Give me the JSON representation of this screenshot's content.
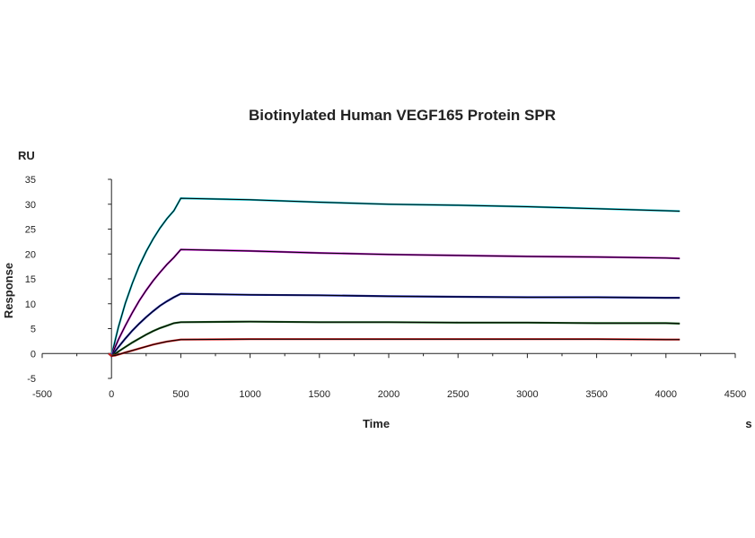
{
  "chart_data": {
    "type": "line",
    "title": "Biotinylated Human VEGF165 Protein SPR",
    "xlabel": "Time",
    "ylabel": "Response",
    "x_unit": "s",
    "y_unit": "RU",
    "xlim": [
      -500,
      4500
    ],
    "ylim": [
      -5,
      35
    ],
    "x_ticks": [
      -500,
      0,
      500,
      1000,
      1500,
      2000,
      2500,
      3000,
      3500,
      4000,
      4500
    ],
    "y_ticks": [
      -5,
      0,
      5,
      10,
      15,
      20,
      25,
      30,
      35
    ],
    "grid": false,
    "legend": "none",
    "fit_color": "#000000",
    "series": [
      {
        "color": "#17c7d4",
        "x": [
          -20,
          0,
          25,
          50,
          100,
          150,
          200,
          250,
          300,
          350,
          400,
          450,
          500,
          1000,
          1500,
          2000,
          2500,
          3000,
          3500,
          4000,
          4100
        ],
        "y": [
          0,
          -0.5,
          2.5,
          5.3,
          10.1,
          14.1,
          17.6,
          20.5,
          23.0,
          25.2,
          27.1,
          28.7,
          31.2,
          30.9,
          30.4,
          30.0,
          29.8,
          29.5,
          29.1,
          28.7,
          28.6
        ]
      },
      {
        "color": "#c41ed0",
        "x": [
          -20,
          0,
          25,
          50,
          100,
          150,
          200,
          250,
          300,
          350,
          400,
          450,
          500,
          1000,
          1500,
          2000,
          2500,
          3000,
          3500,
          4000,
          4100
        ],
        "y": [
          0,
          -0.5,
          1.2,
          2.8,
          5.6,
          8.2,
          10.6,
          12.7,
          14.6,
          16.3,
          17.9,
          19.3,
          20.9,
          20.6,
          20.2,
          19.9,
          19.7,
          19.5,
          19.4,
          19.2,
          19.1
        ]
      },
      {
        "color": "#1a23b0",
        "x": [
          -20,
          0,
          25,
          50,
          100,
          150,
          200,
          250,
          300,
          350,
          400,
          450,
          500,
          1000,
          1500,
          2000,
          2500,
          3000,
          3500,
          4000,
          4100
        ],
        "y": [
          0,
          -0.5,
          0.4,
          1.3,
          3.0,
          4.6,
          6.0,
          7.3,
          8.5,
          9.6,
          10.5,
          11.3,
          12.0,
          11.8,
          11.7,
          11.5,
          11.4,
          11.3,
          11.3,
          11.2,
          11.2
        ]
      },
      {
        "color": "#1f6b24",
        "x": [
          -20,
          0,
          25,
          50,
          100,
          150,
          200,
          250,
          300,
          350,
          400,
          450,
          500,
          1000,
          1500,
          2000,
          2500,
          3000,
          3500,
          4000,
          4100
        ],
        "y": [
          0,
          -0.5,
          -0.1,
          0.4,
          1.3,
          2.2,
          3.0,
          3.8,
          4.5,
          5.1,
          5.6,
          6.1,
          6.3,
          6.4,
          6.3,
          6.3,
          6.2,
          6.2,
          6.1,
          6.1,
          6.0
        ]
      },
      {
        "color": "#d42020",
        "x": [
          -20,
          0,
          25,
          50,
          100,
          150,
          200,
          250,
          300,
          350,
          400,
          450,
          500,
          1000,
          1500,
          2000,
          2500,
          3000,
          3500,
          4000,
          4100
        ],
        "y": [
          0,
          -0.5,
          -0.4,
          -0.2,
          0.2,
          0.6,
          1.0,
          1.4,
          1.8,
          2.1,
          2.4,
          2.6,
          2.8,
          2.9,
          2.9,
          2.9,
          2.9,
          2.9,
          2.9,
          2.8,
          2.8
        ]
      }
    ]
  }
}
